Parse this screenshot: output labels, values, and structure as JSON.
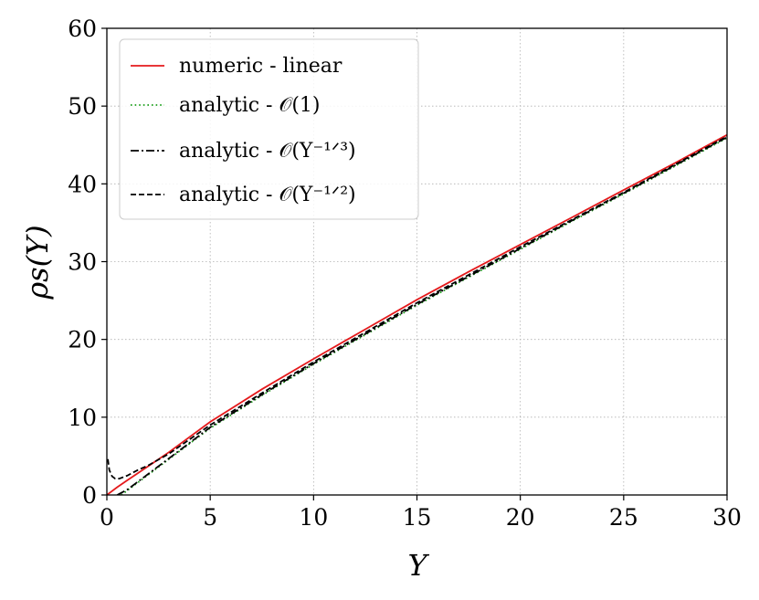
{
  "chart_data": {
    "type": "line",
    "xlabel": "Υ",
    "ylabel": "ρs(Υ)",
    "xlim": [
      0,
      30
    ],
    "ylim": [
      0,
      60
    ],
    "xticks": [
      "0",
      "5",
      "10",
      "15",
      "20",
      "25",
      "30"
    ],
    "yticks": [
      "0",
      "10",
      "20",
      "30",
      "40",
      "50",
      "60"
    ],
    "grid": true,
    "grid_style": "dotted",
    "legend_position": "upper left",
    "series": [
      {
        "name": "numeric - linear",
        "color": "#e41a1c",
        "dash": "solid",
        "x": [
          0,
          0.5,
          1,
          2,
          3,
          5,
          7.5,
          10,
          12.5,
          15,
          17.5,
          20,
          22.5,
          25,
          27.5,
          30
        ],
        "y": [
          0,
          1.0,
          1.9,
          3.7,
          5.5,
          9.4,
          13.6,
          17.5,
          21.3,
          25.1,
          28.7,
          32.2,
          35.7,
          39.2,
          42.7,
          46.3
        ]
      },
      {
        "name": "analytic - 𝒪(1)",
        "color": "#1a9e1a",
        "dash": "dotted",
        "x": [
          0.7,
          1,
          2,
          3,
          5,
          7.5,
          10,
          12.5,
          15,
          17.5,
          20,
          22.5,
          25,
          27.5,
          30
        ],
        "y": [
          0,
          0.6,
          2.6,
          4.6,
          8.6,
          12.8,
          16.8,
          20.6,
          24.4,
          28.0,
          31.6,
          35.2,
          38.7,
          42.3,
          45.9
        ]
      },
      {
        "name": "analytic - 𝒪(Υ⁻¹ᐟ³)",
        "color": "#000000",
        "dash": "dashdot",
        "x": [
          0.5,
          1,
          2,
          3,
          5,
          7.5,
          10,
          12.5,
          15,
          17.5,
          20,
          22.5,
          25,
          27.5,
          30
        ],
        "y": [
          0,
          0.7,
          2.7,
          4.7,
          8.7,
          12.9,
          16.9,
          20.7,
          24.5,
          28.1,
          31.7,
          35.3,
          38.8,
          42.4,
          46.0
        ]
      },
      {
        "name": "analytic - 𝒪(Υ⁻¹ᐟ²)",
        "color": "#000000",
        "dash": "dashed",
        "x": [
          0.05,
          0.12,
          0.25,
          0.4,
          0.6,
          0.8,
          1,
          1.5,
          2,
          3,
          5,
          7.5,
          10,
          12.5,
          15,
          17.5,
          20,
          22.5,
          25,
          27.5,
          30
        ],
        "y": [
          4.6,
          3.2,
          2.4,
          2.1,
          2.1,
          2.3,
          2.5,
          3.2,
          3.8,
          5.3,
          9.0,
          13.1,
          17.1,
          20.9,
          24.7,
          28.3,
          31.9,
          35.4,
          38.9,
          42.5,
          46.1
        ]
      }
    ]
  }
}
